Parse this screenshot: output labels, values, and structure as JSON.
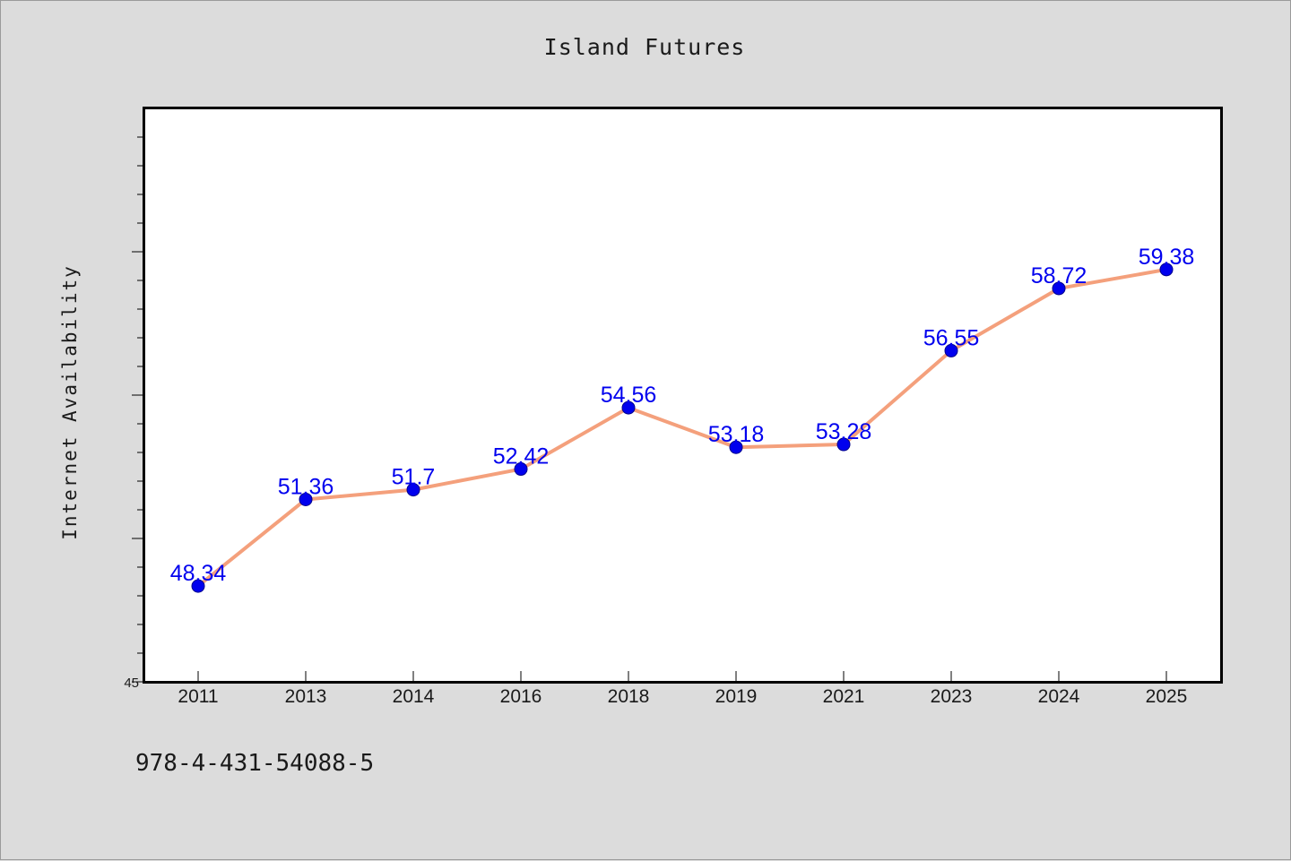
{
  "colors": {
    "background": "#dcdcdc",
    "plot_background": "#ffffff",
    "line": "#f4a07c",
    "marker": "#0000ee",
    "data_label": "#0000ee"
  },
  "footnote": "978-4-431-54088-5",
  "chart_data": {
    "type": "line",
    "title": "Island Futures",
    "xlabel": "",
    "ylabel": "Internet Availability",
    "categories": [
      "2011",
      "2013",
      "2014",
      "2016",
      "2018",
      "2019",
      "2021",
      "2023",
      "2024",
      "2025"
    ],
    "series": [
      {
        "values": [
          48.34,
          51.36,
          51.7,
          52.42,
          54.56,
          53.18,
          53.28,
          56.55,
          58.72,
          59.38
        ]
      }
    ],
    "data_labels": [
      "48.34",
      "51.36",
      "51.7",
      "52.42",
      "54.56",
      "53.18",
      "53.28",
      "56.55",
      "58.72",
      "59.38"
    ],
    "ylim": [
      45,
      65
    ],
    "y_tick_labels": [
      "45"
    ],
    "y_major_step": 5,
    "y_minor_step": 1,
    "grid": false,
    "legend": "none"
  }
}
